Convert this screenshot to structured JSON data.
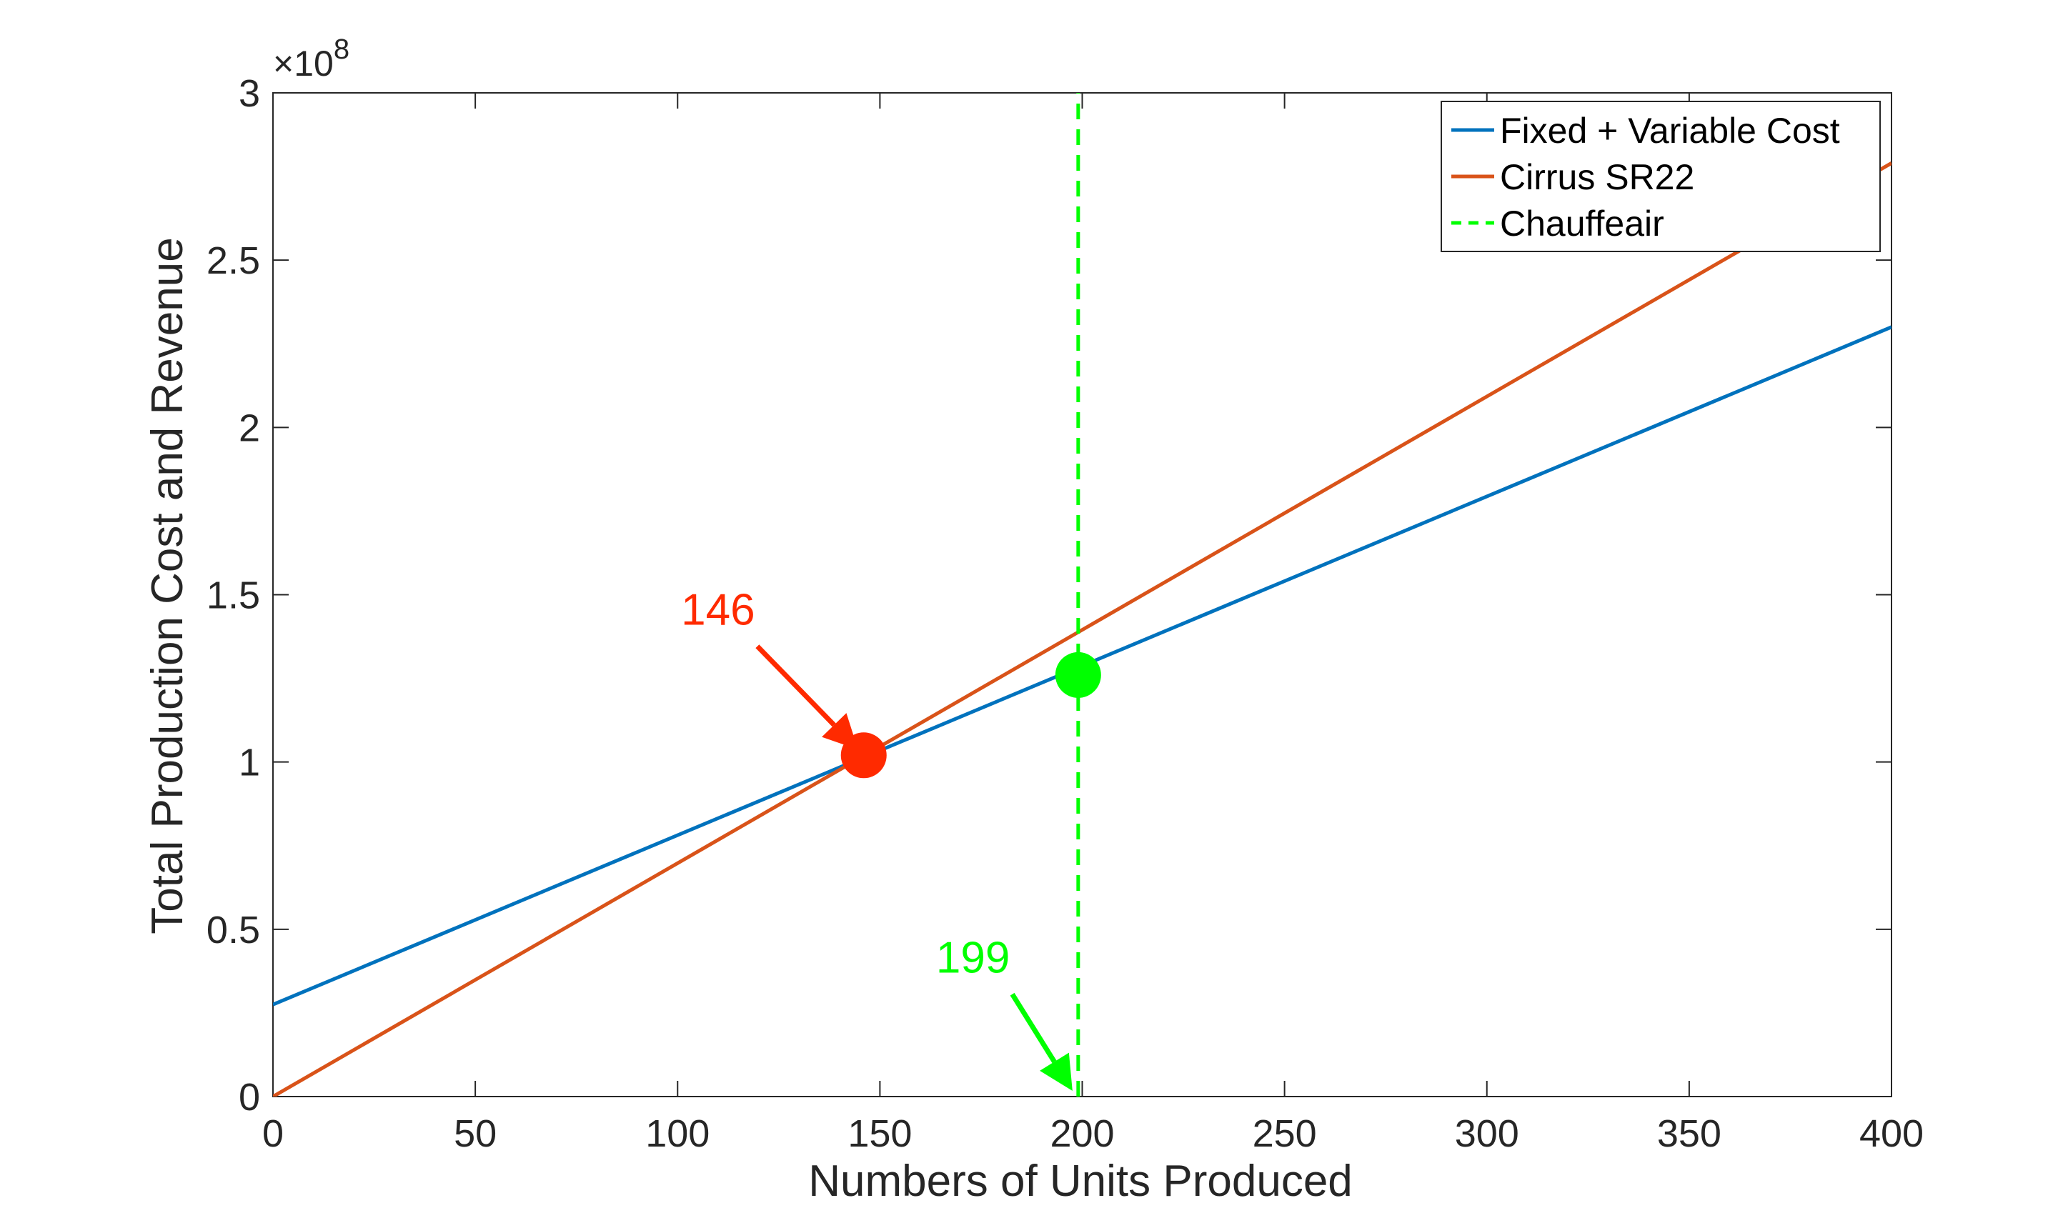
{
  "chart_data": {
    "type": "line",
    "title": "",
    "xlabel": "Numbers of Units Produced",
    "ylabel": "Total Production Cost and Revenue",
    "xlim": [
      0,
      400
    ],
    "ylim": [
      0,
      300000000
    ],
    "y_exponent_label": "×10^8",
    "y_multiplier": 100000000,
    "xticks": [
      0,
      50,
      100,
      150,
      200,
      250,
      300,
      350,
      400
    ],
    "xtick_labels": [
      "0",
      "50",
      "100",
      "150",
      "200",
      "250",
      "300",
      "350",
      "400"
    ],
    "yticks": [
      0,
      0.5,
      1,
      1.5,
      2,
      2.5,
      3
    ],
    "ytick_labels": [
      "0",
      "0.5",
      "1",
      "1.5",
      "2",
      "2.5",
      "3"
    ],
    "grid": false,
    "legend_position": "top-right",
    "series": [
      {
        "name": "Fixed + Variable Cost",
        "color": "#0072BD",
        "style": "solid",
        "x": [
          0,
          400
        ],
        "y": [
          27500000,
          230000000
        ]
      },
      {
        "name": "Cirrus SR22",
        "color": "#D95319",
        "style": "solid",
        "x": [
          0,
          400
        ],
        "y": [
          0,
          279000000
        ]
      },
      {
        "name": "Chauffeair",
        "color": "#00FF00",
        "style": "dashed",
        "x": [
          199,
          199
        ],
        "y": [
          0,
          300000000
        ]
      }
    ],
    "markers": [
      {
        "x": 146,
        "y": 102000000,
        "color": "#FF2A00"
      },
      {
        "x": 199,
        "y": 126000000,
        "color": "#00FF00"
      }
    ],
    "annotations": [
      {
        "text": "146",
        "color": "#FF2A00",
        "target_x": 146,
        "target_y": 102000000,
        "text_x": 110,
        "text_y": 141000000
      },
      {
        "text": "199",
        "color": "#00FF00",
        "target_x": 199,
        "target_y": 0,
        "text_x": 173,
        "text_y": 37000000
      }
    ]
  }
}
